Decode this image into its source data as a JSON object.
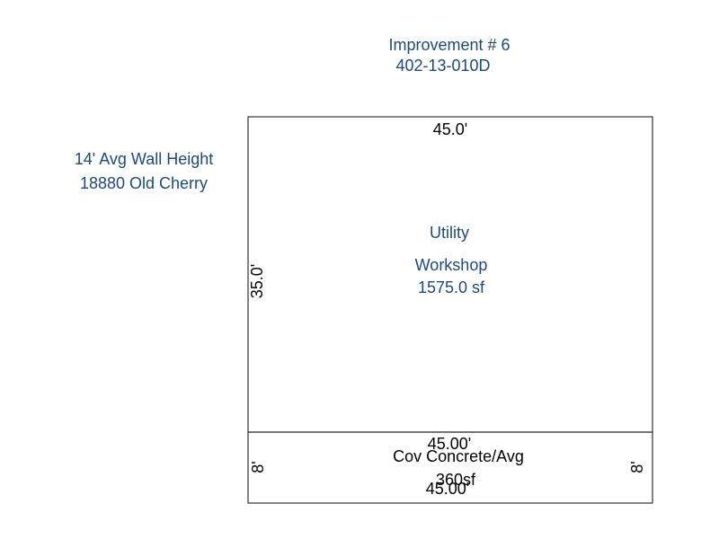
{
  "header": {
    "title": "Improvement # 6",
    "parcel": "402-13-010D"
  },
  "notes": [
    "14' Avg Wall Height",
    "18880 Old Cherry"
  ],
  "areas": [
    {
      "labels": [
        "Utility",
        "Workshop",
        "1575.0 sf"
      ],
      "dimensions": [
        "45.0'",
        "35.0'"
      ]
    },
    {
      "labels": [
        "Cov Concrete/Avg",
        "360sf"
      ],
      "dimensions": [
        "45.00'",
        "45.00'",
        "8'",
        "8'"
      ]
    }
  ]
}
